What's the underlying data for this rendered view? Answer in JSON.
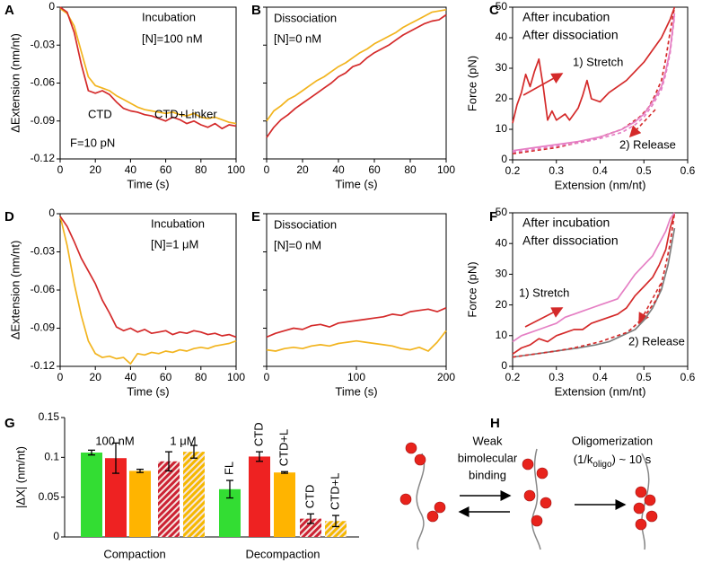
{
  "chart_data": [
    {
      "type": "line",
      "panel_label": "A",
      "xlabel": "Time (s)",
      "ylabel": "ΔExtension (nm/nt)",
      "xlim": [
        0,
        100
      ],
      "xticks": [
        0,
        20,
        40,
        60,
        80,
        100
      ],
      "ylim": [
        -0.12,
        0
      ],
      "yticks": [
        0,
        -0.03,
        -0.06,
        -0.09,
        -0.12
      ],
      "x": [
        0,
        4,
        8,
        12,
        16,
        20,
        24,
        28,
        32,
        36,
        40,
        44,
        48,
        52,
        56,
        60,
        64,
        68,
        72,
        76,
        80,
        84,
        88,
        92,
        96,
        100
      ],
      "series": [
        {
          "color": "#f2b41e",
          "values": [
            -0.001,
            -0.005,
            -0.015,
            -0.035,
            -0.055,
            -0.062,
            -0.064,
            -0.066,
            -0.07,
            -0.073,
            -0.076,
            -0.079,
            -0.081,
            -0.082,
            -0.083,
            -0.084,
            -0.083,
            -0.085,
            -0.086,
            -0.084,
            -0.087,
            -0.088,
            -0.087,
            -0.089,
            -0.091,
            -0.092
          ]
        },
        {
          "color": "#d42a2a",
          "values": [
            0,
            -0.004,
            -0.02,
            -0.045,
            -0.066,
            -0.068,
            -0.066,
            -0.069,
            -0.075,
            -0.08,
            -0.082,
            -0.083,
            -0.085,
            -0.086,
            -0.088,
            -0.09,
            -0.087,
            -0.089,
            -0.092,
            -0.09,
            -0.093,
            -0.095,
            -0.092,
            -0.096,
            -0.093,
            -0.094
          ]
        }
      ],
      "annotations": [
        {
          "text": "Incubation",
          "color": "#000"
        },
        {
          "text": "[N]=100 nM",
          "color": "#000"
        },
        {
          "text": "CTD+Linker",
          "color": "#f2b41e"
        },
        {
          "text": "CTD",
          "color": "#d42a2a"
        },
        {
          "text": "F=10 pN",
          "color": "#000"
        }
      ]
    },
    {
      "type": "line",
      "panel_label": "B",
      "xlabel": "Time (s)",
      "ytick_labels": false,
      "xlim": [
        0,
        100
      ],
      "xticks": [
        0,
        20,
        40,
        60,
        80,
        100
      ],
      "ylim": [
        -0.12,
        0
      ],
      "yticks": [
        0,
        -0.03,
        -0.06,
        -0.09,
        -0.12
      ],
      "x": [
        0,
        4,
        8,
        12,
        16,
        20,
        24,
        28,
        32,
        36,
        40,
        44,
        48,
        52,
        56,
        60,
        64,
        68,
        72,
        76,
        80,
        84,
        88,
        92,
        96,
        100
      ],
      "series": [
        {
          "color": "#f2b41e",
          "values": [
            -0.09,
            -0.082,
            -0.078,
            -0.073,
            -0.07,
            -0.066,
            -0.062,
            -0.058,
            -0.055,
            -0.051,
            -0.047,
            -0.044,
            -0.04,
            -0.036,
            -0.033,
            -0.029,
            -0.026,
            -0.023,
            -0.02,
            -0.016,
            -0.013,
            -0.01,
            -0.007,
            -0.004,
            -0.003,
            -0.002
          ]
        },
        {
          "color": "#d42a2a",
          "values": [
            -0.103,
            -0.095,
            -0.089,
            -0.085,
            -0.08,
            -0.076,
            -0.072,
            -0.068,
            -0.064,
            -0.06,
            -0.055,
            -0.052,
            -0.047,
            -0.045,
            -0.04,
            -0.036,
            -0.033,
            -0.03,
            -0.026,
            -0.022,
            -0.019,
            -0.016,
            -0.013,
            -0.011,
            -0.01,
            -0.006
          ]
        }
      ],
      "annotations": [
        {
          "text": "Dissociation",
          "color": "#000"
        },
        {
          "text": "[N]=0 nM",
          "color": "#000"
        }
      ]
    },
    {
      "type": "line",
      "panel_label": "C",
      "xlabel": "Extension (nm/nt)",
      "ylabel": "Force (pN)",
      "xlim": [
        0.2,
        0.6
      ],
      "xticks": [
        0.2,
        0.3,
        0.4,
        0.5,
        0.6
      ],
      "ylim": [
        0,
        50
      ],
      "yticks": [
        0,
        10,
        20,
        30,
        40,
        50
      ],
      "series": [
        {
          "name": "After incubation",
          "color": "#d42a2a",
          "x": [
            0.2,
            0.21,
            0.22,
            0.23,
            0.24,
            0.25,
            0.26,
            0.27,
            0.28,
            0.29,
            0.3,
            0.31,
            0.32,
            0.33,
            0.34,
            0.35,
            0.36,
            0.37,
            0.38,
            0.4,
            0.42,
            0.44,
            0.46,
            0.48,
            0.5,
            0.52,
            0.54,
            0.56,
            0.57
          ],
          "values": [
            12,
            18,
            22,
            28,
            24,
            29,
            33,
            24,
            13,
            16,
            13,
            14,
            15,
            13,
            15,
            17,
            21,
            26,
            20,
            19,
            22,
            24,
            26,
            29,
            32,
            36,
            40,
            46,
            50
          ]
        },
        {
          "color": "#d42a2a",
          "dash": true,
          "x": [
            0.2,
            0.25,
            0.3,
            0.33,
            0.36,
            0.39,
            0.41,
            0.43,
            0.45,
            0.47,
            0.49,
            0.51,
            0.525,
            0.54,
            0.55,
            0.56,
            0.57
          ],
          "values": [
            2,
            3,
            4,
            5,
            6,
            7,
            8,
            9,
            10,
            12,
            14,
            17,
            21,
            26,
            33,
            42,
            50
          ]
        },
        {
          "name": "After dissociation",
          "color": "#e57fc4",
          "x": [
            0.2,
            0.25,
            0.3,
            0.35,
            0.4,
            0.45,
            0.48,
            0.5,
            0.52,
            0.54,
            0.55,
            0.56,
            0.57
          ],
          "values": [
            3,
            4,
            5,
            6,
            7.5,
            10,
            12.5,
            15,
            19,
            24,
            29,
            36,
            48
          ]
        },
        {
          "color": "#e57fc4",
          "dash": true,
          "x": [
            0.2,
            0.25,
            0.3,
            0.35,
            0.4,
            0.45,
            0.48,
            0.5,
            0.52,
            0.54,
            0.55,
            0.56,
            0.57
          ],
          "values": [
            2.5,
            3.5,
            4.5,
            5.5,
            7,
            9,
            11.5,
            14,
            18,
            23,
            28,
            35,
            47
          ]
        }
      ],
      "annotations": [
        {
          "text": "1) Stretch",
          "color": "#d42a2a"
        },
        {
          "text": "2) Release",
          "color": "#d42a2a"
        }
      ]
    },
    {
      "type": "line",
      "panel_label": "D",
      "xlabel": "Time (s)",
      "ylabel": "ΔExtension (nm/nt)",
      "xlim": [
        0,
        100
      ],
      "xticks": [
        0,
        20,
        40,
        60,
        80,
        100
      ],
      "ylim": [
        -0.12,
        0
      ],
      "yticks": [
        0,
        -0.03,
        -0.06,
        -0.09,
        -0.12
      ],
      "x": [
        0,
        4,
        8,
        12,
        16,
        20,
        24,
        28,
        32,
        36,
        40,
        44,
        48,
        52,
        56,
        60,
        64,
        68,
        72,
        76,
        80,
        84,
        88,
        92,
        96,
        100
      ],
      "series": [
        {
          "color": "#f2b41e",
          "values": [
            -0.002,
            -0.025,
            -0.055,
            -0.08,
            -0.1,
            -0.11,
            -0.113,
            -0.112,
            -0.114,
            -0.113,
            -0.118,
            -0.11,
            -0.111,
            -0.109,
            -0.11,
            -0.108,
            -0.109,
            -0.107,
            -0.108,
            -0.106,
            -0.105,
            -0.106,
            -0.104,
            -0.103,
            -0.102,
            -0.1
          ]
        },
        {
          "color": "#d42a2a",
          "values": [
            -0.002,
            -0.01,
            -0.022,
            -0.035,
            -0.045,
            -0.055,
            -0.068,
            -0.078,
            -0.089,
            -0.092,
            -0.09,
            -0.093,
            -0.091,
            -0.094,
            -0.093,
            -0.092,
            -0.095,
            -0.093,
            -0.094,
            -0.092,
            -0.093,
            -0.095,
            -0.094,
            -0.096,
            -0.095,
            -0.097
          ]
        }
      ],
      "annotations": [
        {
          "text": "Incubation",
          "color": "#000"
        },
        {
          "text": "[N]=1 μM",
          "color": "#000"
        }
      ]
    },
    {
      "type": "line",
      "panel_label": "E",
      "xlabel": "Time (s)",
      "ytick_labels": false,
      "xlim": [
        0,
        200
      ],
      "xticks": [
        0,
        100,
        200
      ],
      "ylim": [
        -0.12,
        0
      ],
      "yticks": [
        0,
        -0.03,
        -0.06,
        -0.09,
        -0.12
      ],
      "x": [
        0,
        10,
        20,
        30,
        40,
        50,
        60,
        70,
        80,
        90,
        100,
        110,
        120,
        130,
        140,
        150,
        160,
        170,
        180,
        190,
        200
      ],
      "series": [
        {
          "color": "#f2b41e",
          "values": [
            -0.107,
            -0.108,
            -0.106,
            -0.105,
            -0.106,
            -0.104,
            -0.103,
            -0.104,
            -0.102,
            -0.101,
            -0.1,
            -0.101,
            -0.102,
            -0.103,
            -0.104,
            -0.106,
            -0.107,
            -0.105,
            -0.108,
            -0.101,
            -0.092
          ]
        },
        {
          "color": "#d42a2a",
          "values": [
            -0.097,
            -0.094,
            -0.092,
            -0.09,
            -0.091,
            -0.088,
            -0.087,
            -0.089,
            -0.086,
            -0.085,
            -0.084,
            -0.083,
            -0.082,
            -0.081,
            -0.079,
            -0.08,
            -0.077,
            -0.076,
            -0.075,
            -0.077,
            -0.074
          ]
        }
      ],
      "annotations": [
        {
          "text": "Dissociation",
          "color": "#000"
        },
        {
          "text": "[N]=0 nM",
          "color": "#000"
        }
      ]
    },
    {
      "type": "line",
      "panel_label": "F",
      "xlabel": "Extension (nm/nt)",
      "ylabel": "Force (pN)",
      "xlim": [
        0.2,
        0.6
      ],
      "xticks": [
        0.2,
        0.3,
        0.4,
        0.5,
        0.6
      ],
      "ylim": [
        0,
        50
      ],
      "yticks": [
        0,
        10,
        20,
        30,
        40,
        50
      ],
      "series": [
        {
          "color": "#7f7f7f",
          "x": [
            0.2,
            0.25,
            0.3,
            0.35,
            0.39,
            0.42,
            0.45,
            0.48,
            0.5,
            0.52,
            0.54,
            0.555,
            0.57
          ],
          "values": [
            3,
            4,
            5,
            6,
            7,
            8,
            10,
            12,
            15,
            19,
            25,
            33,
            45
          ]
        },
        {
          "name": "After incubation",
          "color": "#d42a2a",
          "x": [
            0.2,
            0.22,
            0.24,
            0.26,
            0.28,
            0.3,
            0.32,
            0.34,
            0.36,
            0.38,
            0.4,
            0.42,
            0.44,
            0.45,
            0.46,
            0.47,
            0.48,
            0.5,
            0.52,
            0.535,
            0.55,
            0.56,
            0.57
          ],
          "values": [
            4,
            6,
            7,
            9,
            8,
            10,
            11,
            12,
            12,
            14,
            15,
            16,
            17,
            18,
            19,
            21,
            23,
            26,
            29,
            33,
            38,
            45,
            50
          ]
        },
        {
          "color": "#d42a2a",
          "dash": true,
          "x": [
            0.2,
            0.25,
            0.3,
            0.34,
            0.37,
            0.4,
            0.42,
            0.44,
            0.46,
            0.47,
            0.485,
            0.5,
            0.515,
            0.53,
            0.54,
            0.55,
            0.56,
            0.57
          ],
          "values": [
            3,
            4,
            5,
            6,
            7,
            8,
            9,
            10,
            11,
            12,
            14,
            16,
            19,
            22,
            27,
            33,
            40,
            50
          ]
        },
        {
          "name": "After dissociation",
          "color": "#e57fc4",
          "x": [
            0.2,
            0.22,
            0.24,
            0.26,
            0.28,
            0.3,
            0.32,
            0.34,
            0.36,
            0.38,
            0.4,
            0.42,
            0.44,
            0.45,
            0.46,
            0.47,
            0.48,
            0.5,
            0.52,
            0.535,
            0.55,
            0.56,
            0.57
          ],
          "values": [
            8,
            10,
            11,
            12,
            13,
            14,
            16,
            17,
            18,
            19,
            20,
            21,
            22,
            24,
            26,
            28,
            30,
            33,
            36,
            40,
            44,
            48,
            50
          ]
        }
      ],
      "annotations": [
        {
          "text": "1) Stretch",
          "color": "#d42a2a"
        },
        {
          "text": "2) Release",
          "color": "#d42a2a"
        }
      ]
    },
    {
      "type": "bar",
      "panel_label": "G",
      "ylabel": "|ΔX| (nm/nt)",
      "ylim": [
        0,
        0.15
      ],
      "yticks": [
        0,
        0.05,
        0.1,
        0.15
      ],
      "groups": [
        "Compaction",
        "Decompaction"
      ],
      "subgroup_labels": [
        "100 nM",
        "1 μM"
      ],
      "bars": [
        {
          "value": 0.106,
          "error": 0.003,
          "color": "#33dd33"
        },
        {
          "value": 0.099,
          "error": 0.019,
          "color": "#ee2222"
        },
        {
          "value": 0.083,
          "error": 0.002,
          "color": "#ffb400"
        },
        {
          "value": 0.095,
          "error": 0.012,
          "color": "#cc2233",
          "hatched": true
        },
        {
          "value": 0.107,
          "error": 0.008,
          "color": "#f5b800",
          "hatched": true
        },
        {
          "value": 0.06,
          "error": 0.011,
          "color": "#33dd33",
          "label": "FL"
        },
        {
          "value": 0.101,
          "error": 0.006,
          "color": "#ee2222",
          "label": "CTD"
        },
        {
          "value": 0.081,
          "error": 0.001,
          "color": "#ffb400",
          "label": "CTD+L"
        },
        {
          "value": 0.023,
          "error": 0.006,
          "color": "#cc2233",
          "hatched": true,
          "label": "CTD"
        },
        {
          "value": 0.02,
          "error": 0.007,
          "color": "#f5b800",
          "hatched": true,
          "label": "CTD+L"
        }
      ]
    }
  ],
  "diagram": {
    "panel_label": "H",
    "step1": [
      "Weak",
      "bimolecular",
      "binding"
    ],
    "step2_title": "Oligomerization",
    "step2_rate": {
      "prefix": "(1/k",
      "subscript": "oligo",
      "suffix": ") ~ 10 s"
    }
  }
}
